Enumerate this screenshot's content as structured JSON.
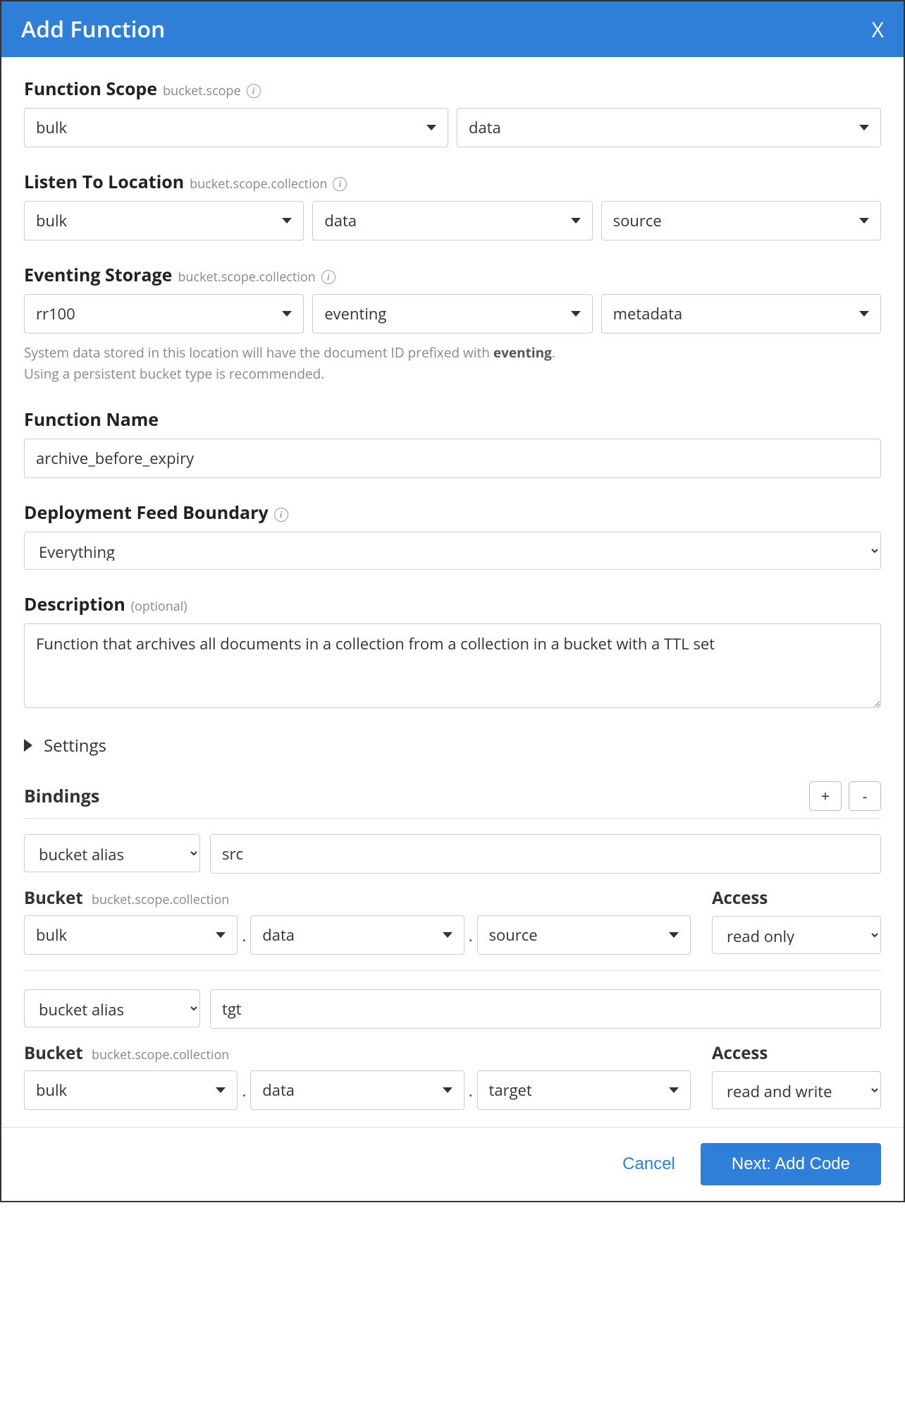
{
  "colors": {
    "primary": "#2f7ed8",
    "border": "#cccccc",
    "text": "#333333",
    "muted": "#888888"
  },
  "header": {
    "title": "Add Function",
    "close": "X"
  },
  "scope": {
    "label": "Function Scope",
    "hint": "bucket.scope",
    "bucket": "bulk",
    "scope_val": "data"
  },
  "listen": {
    "label": "Listen To Location",
    "hint": "bucket.scope.collection",
    "bucket": "bulk",
    "scope_val": "data",
    "collection": "source"
  },
  "storage": {
    "label": "Eventing Storage",
    "hint": "bucket.scope.collection",
    "bucket": "rr100",
    "scope_val": "eventing",
    "collection": "metadata",
    "helper_prefix": "System data stored in this location will have the document ID prefixed with ",
    "helper_bold": "eventing",
    "helper_suffix": ".",
    "helper2": "Using a persistent bucket type is recommended."
  },
  "name": {
    "label": "Function Name",
    "value": "archive_before_expiry"
  },
  "boundary": {
    "label": "Deployment Feed Boundary",
    "value": "Everything"
  },
  "description": {
    "label": "Description",
    "optional": "(optional)",
    "value": "Function that archives all documents in a collection from a collection in a bucket with a TTL set"
  },
  "settings": {
    "label": "Settings"
  },
  "bindings": {
    "label": "Bindings",
    "add": "+",
    "remove": "-",
    "bucket_label": "Bucket",
    "bucket_hint": "bucket.scope.collection",
    "access_label": "Access",
    "items": [
      {
        "type": "bucket alias",
        "alias": "src",
        "bucket": "bulk",
        "scope": "data",
        "collection": "source",
        "access": "read only"
      },
      {
        "type": "bucket alias",
        "alias": "tgt",
        "bucket": "bulk",
        "scope": "data",
        "collection": "target",
        "access": "read and write"
      }
    ]
  },
  "footer": {
    "cancel": "Cancel",
    "next": "Next: Add Code"
  }
}
